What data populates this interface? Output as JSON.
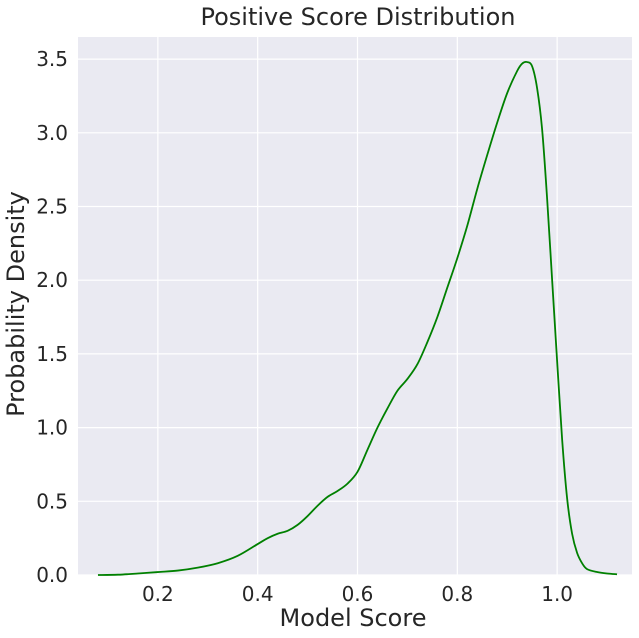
{
  "chart_data": {
    "type": "line",
    "title": "Positive Score Distribution",
    "xlabel": "Model Score",
    "ylabel": "Probability Density",
    "xlim": [
      0.04,
      1.15
    ],
    "ylim": [
      0,
      3.65
    ],
    "xticks": [
      0.2,
      0.4,
      0.6,
      0.8,
      1.0
    ],
    "xtick_labels": [
      "0.2",
      "0.4",
      "0.6",
      "0.8",
      "1.0"
    ],
    "yticks": [
      0,
      0.5,
      1.0,
      1.5,
      2.0,
      2.5,
      3.0,
      3.5
    ],
    "ytick_labels": [
      "0.0",
      "0.5",
      "1.0",
      "1.5",
      "2.0",
      "2.5",
      "3.0",
      "3.5"
    ],
    "grid": true,
    "background": "#eaeaf2",
    "grid_color": "#ffffff",
    "series": [
      {
        "color": "#008000",
        "x": [
          0.08,
          0.12,
          0.16,
          0.2,
          0.24,
          0.28,
          0.32,
          0.36,
          0.4,
          0.42,
          0.44,
          0.46,
          0.48,
          0.5,
          0.52,
          0.54,
          0.56,
          0.58,
          0.6,
          0.62,
          0.64,
          0.66,
          0.68,
          0.7,
          0.72,
          0.74,
          0.76,
          0.78,
          0.8,
          0.82,
          0.84,
          0.86,
          0.88,
          0.9,
          0.92,
          0.93,
          0.94,
          0.95,
          0.96,
          0.97,
          0.98,
          0.99,
          1.0,
          1.01,
          1.02,
          1.03,
          1.04,
          1.05,
          1.06,
          1.08,
          1.1,
          1.12
        ],
        "y": [
          0.0,
          0.002,
          0.01,
          0.02,
          0.03,
          0.05,
          0.08,
          0.13,
          0.21,
          0.25,
          0.28,
          0.3,
          0.34,
          0.4,
          0.47,
          0.53,
          0.57,
          0.62,
          0.7,
          0.85,
          1.0,
          1.13,
          1.25,
          1.33,
          1.43,
          1.58,
          1.75,
          1.95,
          2.15,
          2.37,
          2.62,
          2.85,
          3.07,
          3.27,
          3.42,
          3.47,
          3.48,
          3.45,
          3.3,
          3.02,
          2.55,
          2.0,
          1.45,
          0.92,
          0.52,
          0.28,
          0.15,
          0.08,
          0.04,
          0.02,
          0.01,
          0.005
        ]
      }
    ]
  }
}
